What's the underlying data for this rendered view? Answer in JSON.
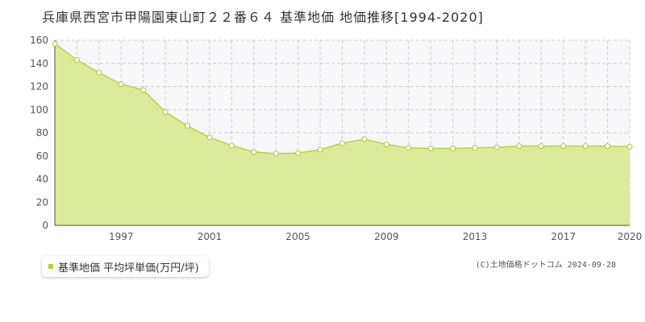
{
  "chart_data": {
    "type": "area",
    "title": "兵庫県西宮市甲陽園東山町２２番６４ 基準地価 地価推移[1994-2020]",
    "xlabel": "",
    "ylabel": "",
    "x": [
      1994,
      1995,
      1996,
      1997,
      1998,
      1999,
      2000,
      2001,
      2002,
      2003,
      2004,
      2005,
      2006,
      2007,
      2008,
      2009,
      2010,
      2011,
      2012,
      2013,
      2014,
      2015,
      2016,
      2017,
      2018,
      2019,
      2020
    ],
    "series": [
      {
        "name": "基準地価 平均坪単価(万円/坪)",
        "values": [
          157,
          143,
          132,
          122,
          117,
          98,
          86,
          76,
          69,
          63.5,
          62,
          62.5,
          65.5,
          71,
          74.5,
          70,
          67,
          66.5,
          66.5,
          67,
          67.5,
          68.5,
          68.5,
          68.5,
          68.5,
          68.5,
          68
        ]
      }
    ],
    "xlim": [
      1994,
      2020
    ],
    "ylim": [
      0,
      160
    ],
    "y_ticks": [
      0,
      20,
      40,
      60,
      80,
      100,
      120,
      140,
      160
    ],
    "x_tick_labels": [
      1997,
      2001,
      2005,
      2009,
      2013,
      2017,
      2020
    ],
    "grid": true,
    "legend_position": "bottom-left",
    "colors": {
      "fill": "#dbeb9b",
      "line": "#b5d33f",
      "marker_stroke": "#a9c83a",
      "grid": "#cccccc"
    }
  },
  "footer": {
    "copyright": "(C)土地価格ドットコム 2024-09-28"
  }
}
